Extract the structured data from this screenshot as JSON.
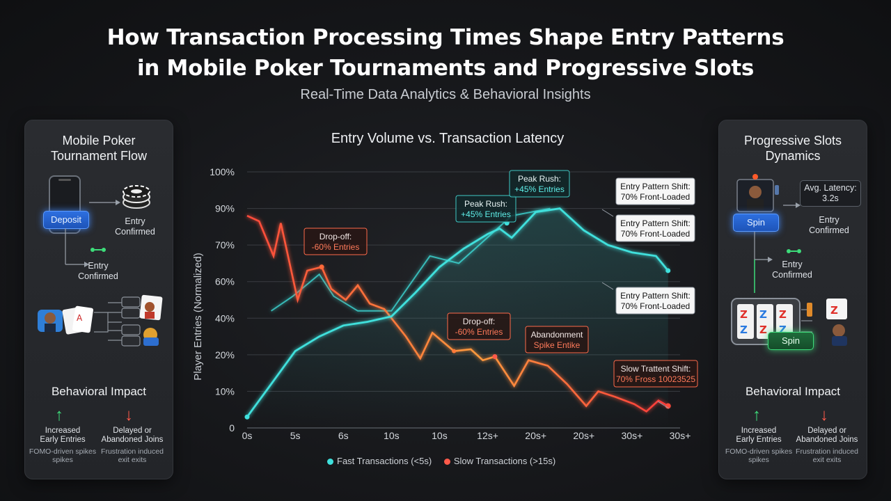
{
  "header": {
    "title_line1": "How Transaction Processing Times Shape Entry Patterns",
    "title_line2": "in Mobile Poker Tournaments and Progressive Slots",
    "subtitle": "Real-Time Data Analytics & Behavioral Insights"
  },
  "left_panel": {
    "title_line1": "Mobile Poker",
    "title_line2": "Tournament Flow",
    "deposit_button": "Deposit",
    "entry_confirmed_1_line1": "Entry",
    "entry_confirmed_1_line2": "Confirmed",
    "entry_confirmed_2_line1": "Entry",
    "entry_confirmed_2_line2": "Confirmed",
    "impact_title": "Behavioral Impact",
    "impact_left_line1": "Increased",
    "impact_left_line2": "Early Entries",
    "impact_left_note_line1": "FOMO-driven spikes",
    "impact_left_note_line2": "spikes",
    "impact_right_line1": "Delayed or",
    "impact_right_line2": "Abandoned Joins",
    "impact_right_note_line1": "Frustration induced",
    "impact_right_note_line2": "exit exits"
  },
  "right_panel": {
    "title_line1": "Progressive Slots",
    "title_line2": "Dynamics",
    "spin_button_1": "Spin",
    "spin_button_2": "Spin",
    "latency_line1": "Avg. Latency:",
    "latency_line2": "3.2s",
    "entry_confirmed_1_line1": "Entry",
    "entry_confirmed_1_line2": "Confirmed",
    "entry_confirmed_2_line1": "Entry",
    "entry_confirmed_2_line2": "Confirmed",
    "impact_title": "Behavioral Impact",
    "impact_left_line1": "Increased",
    "impact_left_line2": "Early Entries",
    "impact_left_note_line1": "FOMO-driven spikes",
    "impact_left_note_line2": "spikes",
    "impact_right_line1": "Delayed or",
    "impact_right_line2": "Abandoned Joins",
    "impact_right_note_line1": "Frustration induced",
    "impact_right_note_line2": "exit exits"
  },
  "colors": {
    "fast": "#3fe0dc",
    "slow": "#ff5a4a",
    "slow_mid": "#ff8a3d"
  },
  "chart_data": {
    "type": "line",
    "title": "Entry Volume vs. Transaction Latency",
    "ylabel": "Player Entries (Normalized)",
    "xlabel": "",
    "y_ticks": [
      "100%",
      "90%",
      "70%",
      "60%",
      "40%",
      "20%",
      "10%",
      "0"
    ],
    "x_ticks": [
      "0s",
      "5s",
      "6s",
      "10s",
      "10s",
      "12s+",
      "20s+",
      "20s+",
      "30s+",
      "30s+"
    ],
    "x_range": [
      0,
      18
    ],
    "y_range": [
      0,
      7
    ],
    "legend": [
      "Fast Transactions (<5s)",
      "Slow Transactions (>15s)"
    ],
    "series": [
      {
        "name": "Fast Transactions (<5s)",
        "points": [
          [
            0,
            0.3
          ],
          [
            1,
            1.2
          ],
          [
            2,
            2.1
          ],
          [
            3,
            2.5
          ],
          [
            4,
            2.8
          ],
          [
            5,
            2.9
          ],
          [
            6,
            3.05
          ],
          [
            7,
            3.7
          ],
          [
            8,
            4.4
          ],
          [
            9,
            4.9
          ],
          [
            10,
            5.3
          ],
          [
            10.5,
            5.45
          ],
          [
            11,
            5.2
          ],
          [
            12,
            5.9
          ],
          [
            13,
            6.0
          ],
          [
            14,
            5.4
          ],
          [
            15,
            5.0
          ],
          [
            16,
            4.8
          ],
          [
            17,
            4.7
          ],
          [
            17.5,
            4.3
          ]
        ]
      },
      {
        "name": "Fast Transactions (<5s) – secondary",
        "points": [
          [
            1,
            3.2
          ],
          [
            1.9,
            3.6
          ],
          [
            3,
            4.2
          ],
          [
            3.6,
            3.6
          ],
          [
            4.6,
            3.2
          ],
          [
            6,
            3.2
          ],
          [
            7.6,
            4.7
          ],
          [
            8.8,
            4.5
          ],
          [
            11,
            5.8
          ],
          [
            12.6,
            6.0
          ]
        ]
      },
      {
        "name": "Slow Transactions (>15s)",
        "points": [
          [
            0,
            5.8
          ],
          [
            0.5,
            5.65
          ],
          [
            1.1,
            4.7
          ],
          [
            1.4,
            5.6
          ],
          [
            2.1,
            3.5
          ],
          [
            2.5,
            4.3
          ],
          [
            3.1,
            4.4
          ],
          [
            3.5,
            3.8
          ],
          [
            4.1,
            3.5
          ],
          [
            4.6,
            3.9
          ],
          [
            5.1,
            3.4
          ],
          [
            5.7,
            3.25
          ],
          [
            6.6,
            2.5
          ],
          [
            7.2,
            1.9
          ],
          [
            7.7,
            2.6
          ],
          [
            8.6,
            2.1
          ],
          [
            9.3,
            2.15
          ],
          [
            9.8,
            1.85
          ],
          [
            10.3,
            1.95
          ],
          [
            11.1,
            1.15
          ],
          [
            11.7,
            1.85
          ],
          [
            12.5,
            1.7
          ],
          [
            13.3,
            1.2
          ],
          [
            14.1,
            0.6
          ],
          [
            14.6,
            1.0
          ],
          [
            15.3,
            0.85
          ],
          [
            16.1,
            0.65
          ],
          [
            16.6,
            0.45
          ],
          [
            17.1,
            0.75
          ],
          [
            17.5,
            0.6
          ]
        ]
      }
    ],
    "annotations": [
      {
        "line1": "Drop-off:",
        "line2": "-60% Entries",
        "color": "slow"
      },
      {
        "line1": "Peak Rush:",
        "line2": "+45% Entries",
        "color": "fast"
      },
      {
        "line1": "Peak Rush:",
        "line2": "+45% Entries",
        "color": "fast"
      },
      {
        "line1": "Entry Pattern Shift:",
        "line2": "70% Front-Loaded",
        "color": "neutral"
      },
      {
        "line1": "Entry Pattern Shift:",
        "line2": "70% Front-Loaded",
        "color": "neutral"
      },
      {
        "line1": "Entry Pattern Shift:",
        "line2": "70% Front-Loaded",
        "color": "neutral"
      },
      {
        "line1": "Drop-off:",
        "line2": "-60% Entries",
        "color": "slow"
      },
      {
        "line1": "Abandonment",
        "line2": "Spike Entike",
        "color": "slow"
      },
      {
        "line1": "Slow Trattent Shift:",
        "line2": "70% Fross 10023525",
        "color": "slow"
      }
    ]
  }
}
